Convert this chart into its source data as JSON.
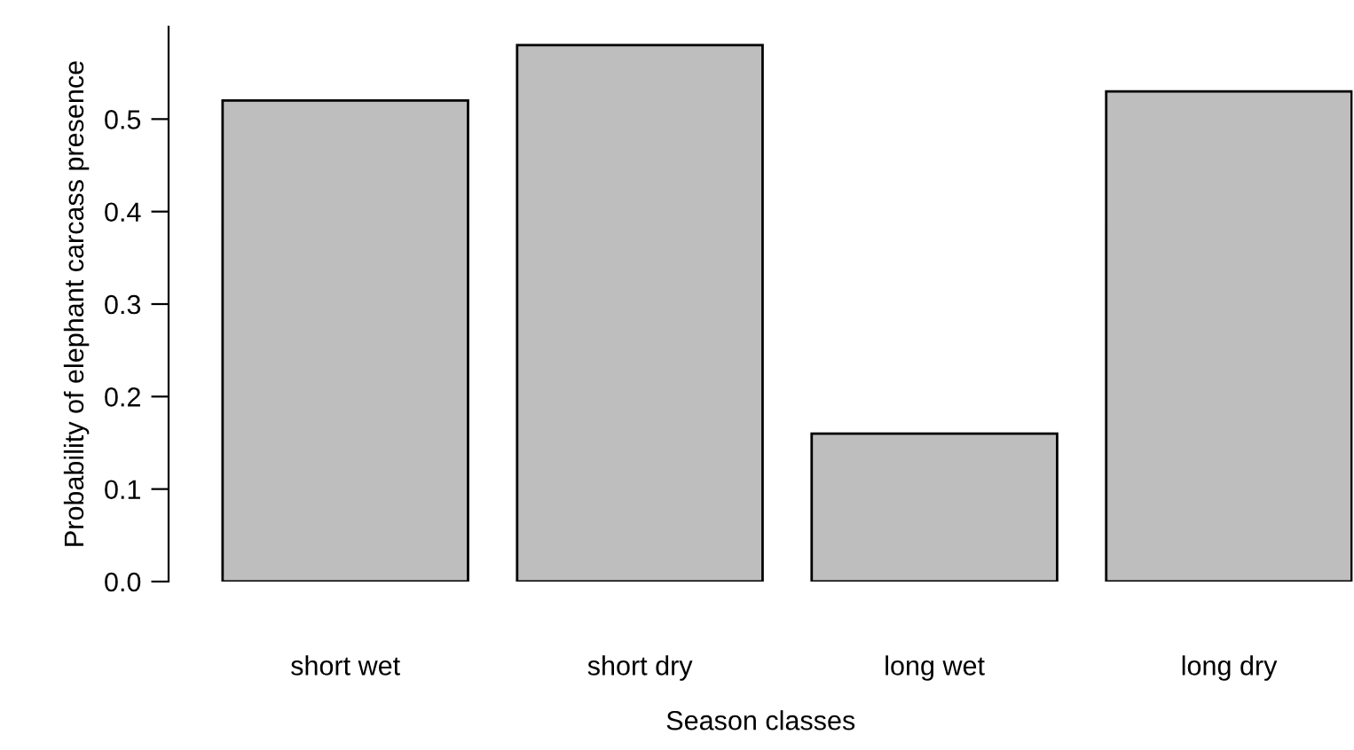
{
  "chart_data": {
    "type": "bar",
    "xlabel": "Season classes",
    "ylabel": "Probability of elephant carcass presence",
    "categories": [
      "short wet",
      "short dry",
      "long wet",
      "long dry"
    ],
    "values": [
      0.52,
      0.58,
      0.16,
      0.53
    ],
    "color": "#bebebe",
    "ylim": [
      0,
      0.6
    ],
    "yticks": [
      {
        "value": 0,
        "label": "0.0"
      },
      {
        "value": 0.1,
        "label": "0.1"
      },
      {
        "value": 0.2,
        "label": "0.2"
      },
      {
        "value": 0.3,
        "label": "0.3"
      },
      {
        "value": 0.4,
        "label": "0.4"
      },
      {
        "value": 0.5,
        "label": "0.5"
      }
    ],
    "grid": false,
    "legend": false
  }
}
